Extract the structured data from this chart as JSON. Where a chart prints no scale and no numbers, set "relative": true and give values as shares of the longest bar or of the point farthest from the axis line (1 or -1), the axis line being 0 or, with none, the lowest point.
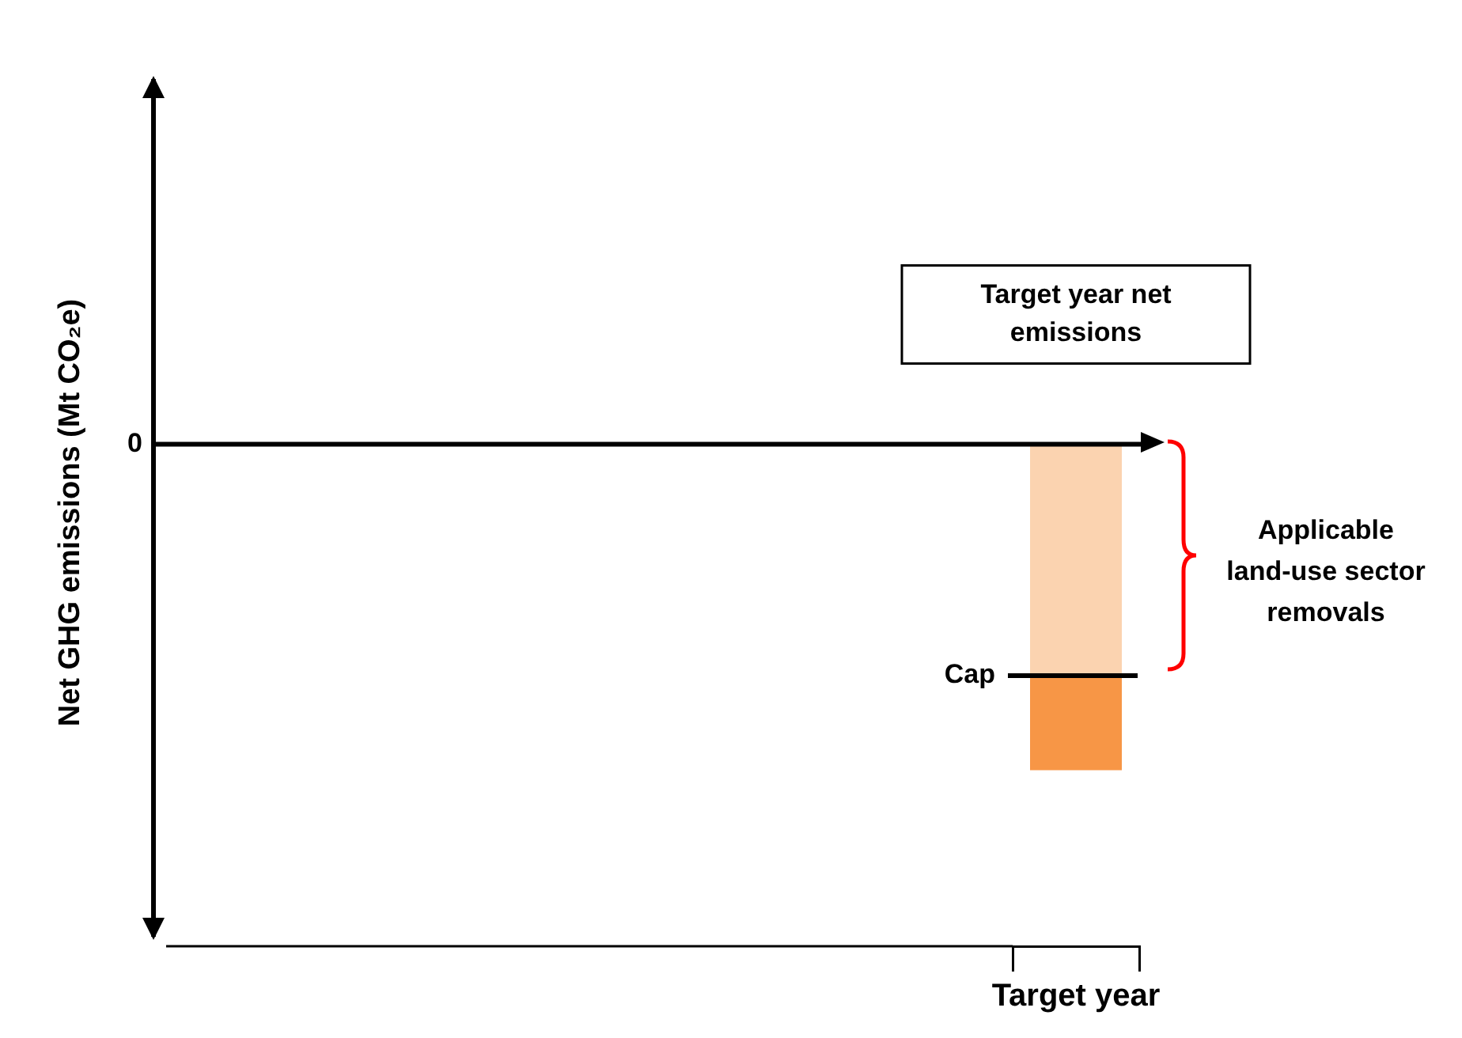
{
  "chart_data": {
    "type": "bar",
    "relative": true,
    "stacked": true,
    "categories": [
      "Target year"
    ],
    "series": [
      {
        "color": "#fbd3b0",
        "values": [
          -0.71
        ]
      },
      {
        "color": "#f79646",
        "values": [
          -0.29
        ]
      }
    ],
    "ref_lines": [
      {
        "axis": "y",
        "value": 0,
        "label": "0",
        "color": "#000000"
      },
      {
        "axis": "y",
        "value": -0.71,
        "label": "Cap",
        "color": "#000000"
      }
    ],
    "annotations": [
      "Target year net emissions",
      "Applicable land-use sector removals",
      "Net GHG emissions (Mt CO₂e)"
    ],
    "legend": false,
    "grid": false
  }
}
